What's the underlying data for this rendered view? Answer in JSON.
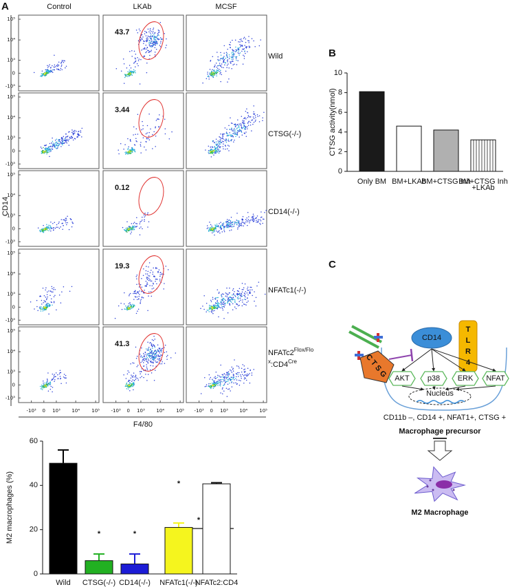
{
  "panel_labels": [
    "A",
    "B",
    "C"
  ],
  "flow": {
    "columns": [
      "Control",
      "LKAb",
      "MCSF"
    ],
    "rows": [
      {
        "label": "Wild",
        "gate": 43.7
      },
      {
        "label": "CTSG(-/-)",
        "gate": 3.44
      },
      {
        "label": "CD14(-/-)",
        "gate": 0.12
      },
      {
        "label": "NFATc1(-/-)",
        "gate": 19.3
      },
      {
        "label": [
          "NFATc2",
          "Flox/Flo",
          "x",
          ":CD4",
          "Cre"
        ],
        "gate": 41.3
      }
    ],
    "y_label": "CD14",
    "x_label": "F4/80",
    "ticks": [
      {
        "value": -1000,
        "label": "-10³"
      },
      0,
      {
        "value": 1000,
        "label": "10³"
      },
      {
        "value": 10000,
        "label": "10⁴"
      },
      {
        "value": 100000,
        "label": "10⁵"
      }
    ],
    "gate_color": "#e0312f"
  },
  "chart_data": [
    {
      "type": "bar",
      "y_label": "M2 macrophages (%)",
      "categories": [
        "Wild",
        "CTSG(-/-)",
        "CD14(-/-)",
        "NFATc1(-/-)",
        "NFATc2:CD4"
      ],
      "values": [
        50,
        6,
        4.5,
        21,
        40.7
      ],
      "errors": [
        6,
        3,
        4.5,
        2,
        0.5
      ],
      "colors": [
        "#000000",
        "#22b022",
        "#1c1cd6",
        "#f5f51e",
        "#ffffff"
      ],
      "ylim": [
        0,
        60
      ],
      "yticks": [
        0,
        20,
        40,
        60
      ],
      "annotations": [
        "*",
        "*",
        "*",
        "*"
      ]
    },
    {
      "type": "bar",
      "y_label": "CTSG activity(nmol)",
      "categories": [
        "Only BM",
        "BM+LKAb",
        "BM+CTSG Inh",
        "BM+CTSG Inh\n+LKAb"
      ],
      "values": [
        8.1,
        4.6,
        4.2,
        3.2
      ],
      "colors": [
        "#1a1a1a",
        "#ffffff",
        "#b0b0b0",
        "#ffffff"
      ],
      "hatch": [
        false,
        false,
        false,
        true
      ],
      "ylim": [
        0,
        10
      ],
      "yticks": [
        0,
        2,
        4,
        6,
        8,
        10
      ]
    }
  ],
  "diagram": {
    "receptor": "CD14",
    "tlr": [
      "T",
      "L",
      "R",
      "4"
    ],
    "enzyme": "CTSG",
    "kinases": [
      "AKT",
      "p38",
      "ERK",
      "NFAT"
    ],
    "nucleus": "Nucleus",
    "markers": "CD11b –, CD14 +, NFAT1+, CTSG +",
    "precursor": "Macrophage precursor",
    "product": "M2 Macrophage"
  }
}
